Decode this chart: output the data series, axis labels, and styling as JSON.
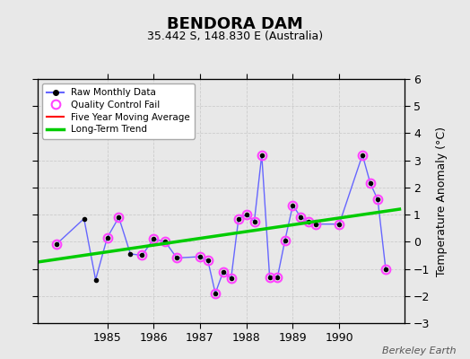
{
  "title": "BENDORA DAM",
  "subtitle": "35.442 S, 148.830 E (Australia)",
  "ylabel": "Temperature Anomaly (°C)",
  "watermark": "Berkeley Earth",
  "background_color": "#e8e8e8",
  "plot_bg_color": "#e8e8e8",
  "ylim": [
    -3,
    6
  ],
  "yticks": [
    -3,
    -2,
    -1,
    0,
    1,
    2,
    3,
    4,
    5,
    6
  ],
  "raw_x": [
    1983.9,
    1984.5,
    1984.75,
    1985.0,
    1985.25,
    1985.5,
    1985.75,
    1986.0,
    1986.25,
    1986.5,
    1987.0,
    1987.17,
    1987.33,
    1987.5,
    1987.67,
    1987.83,
    1988.0,
    1988.17,
    1988.33,
    1988.5,
    1988.67,
    1988.83,
    1989.0,
    1989.17,
    1989.33,
    1989.5,
    1990.0,
    1990.5,
    1990.67,
    1990.83,
    1991.0
  ],
  "raw_y": [
    -0.1,
    0.85,
    -1.4,
    0.15,
    0.9,
    -0.45,
    -0.5,
    0.1,
    0.0,
    -0.6,
    -0.55,
    -0.7,
    -1.9,
    -1.1,
    -1.35,
    0.85,
    1.0,
    0.75,
    3.2,
    -1.3,
    -1.3,
    0.05,
    1.35,
    0.9,
    0.75,
    0.65,
    0.65,
    3.2,
    2.15,
    1.55,
    -1.0
  ],
  "qc_fail_x": [
    1983.9,
    1985.0,
    1985.25,
    1985.75,
    1986.0,
    1986.25,
    1986.5,
    1987.0,
    1987.17,
    1987.33,
    1987.5,
    1987.67,
    1987.83,
    1988.0,
    1988.17,
    1988.33,
    1988.5,
    1988.67,
    1988.83,
    1989.0,
    1989.17,
    1989.33,
    1989.5,
    1990.0,
    1990.5,
    1990.67,
    1990.83,
    1991.0
  ],
  "qc_fail_y": [
    -0.1,
    0.15,
    0.9,
    -0.5,
    0.1,
    0.0,
    -0.6,
    -0.55,
    -0.7,
    -1.9,
    -1.1,
    -1.35,
    0.85,
    1.0,
    0.75,
    3.2,
    -1.3,
    -1.3,
    0.05,
    1.35,
    0.9,
    0.75,
    0.65,
    0.65,
    3.2,
    2.15,
    1.55,
    -1.0
  ],
  "trend_x": [
    1983.5,
    1991.3
  ],
  "trend_y": [
    -0.75,
    1.2
  ],
  "raw_line_color": "#6666ff",
  "raw_marker_color": "#000000",
  "qc_color": "#ff44ff",
  "trend_color": "#00cc00",
  "ma_color": "#ff0000",
  "xlim": [
    1983.5,
    1991.4
  ],
  "xtick_positions": [
    1985,
    1986,
    1987,
    1988,
    1989,
    1990
  ],
  "xtick_labels": [
    "1985",
    "1986",
    "1987",
    "1988",
    "1989",
    "1990"
  ]
}
